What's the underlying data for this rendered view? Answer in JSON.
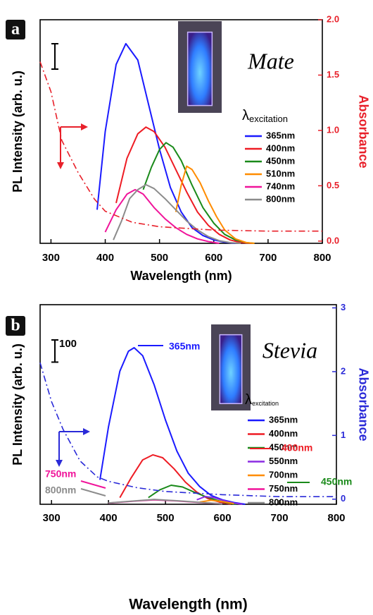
{
  "chart_data": [
    {
      "type": "line",
      "panel_label": "a",
      "annotation": "Mate",
      "xlabel": "Wavelength (nm)",
      "ylabel": "PL Intensity (arb. u.)",
      "y2label": "Absorbance",
      "y2color": "#e8202a",
      "xlim": [
        280,
        800
      ],
      "xticks": [
        300,
        400,
        500,
        600,
        700,
        800
      ],
      "ylim": [
        0,
        1000
      ],
      "y2lim": [
        -0.02,
        2.0
      ],
      "y2ticks": [
        {
          "value": 0,
          "label": "0.0"
        },
        0.5,
        {
          "value": 1,
          "label": "1.0"
        },
        1.5,
        {
          "value": 2,
          "label": "2.0"
        }
      ],
      "legend_title": {
        "symbol": "λ",
        "subscript": "excitation"
      },
      "series": [
        {
          "name": "365nm",
          "color": "#1a1aff",
          "x": [
            385,
            400,
            420,
            438,
            460,
            480,
            500,
            520,
            540,
            560,
            580,
            600,
            620,
            640
          ],
          "values": [
            150,
            500,
            800,
            893,
            820,
            620,
            420,
            250,
            140,
            70,
            35,
            15,
            5,
            0
          ]
        },
        {
          "name": "400nm",
          "color": "#ee1c24",
          "x": [
            420,
            440,
            460,
            475,
            490,
            510,
            530,
            550,
            570,
            590,
            610,
            630,
            650,
            670
          ],
          "values": [
            180,
            380,
            490,
            520,
            500,
            430,
            330,
            230,
            140,
            80,
            40,
            15,
            3,
            0
          ]
        },
        {
          "name": "450nm",
          "color": "#1a8a1a",
          "x": [
            470,
            485,
            500,
            512,
            525,
            540,
            560,
            580,
            600,
            620,
            640,
            660,
            675
          ],
          "values": [
            240,
            340,
            420,
            450,
            430,
            370,
            260,
            160,
            90,
            40,
            15,
            3,
            0
          ]
        },
        {
          "name": "510nm",
          "color": "#ff8c00",
          "x": [
            530,
            540,
            550,
            560,
            575,
            590,
            605,
            620,
            640,
            660,
            675
          ],
          "values": [
            140,
            260,
            345,
            330,
            270,
            190,
            120,
            60,
            20,
            3,
            0
          ]
        },
        {
          "name": "740nm",
          "color": "#f0149a",
          "x": [
            400,
            420,
            440,
            455,
            470,
            490,
            510,
            530,
            550,
            570,
            590,
            610
          ],
          "values": [
            50,
            150,
            220,
            240,
            220,
            160,
            110,
            70,
            40,
            20,
            8,
            0
          ]
        },
        {
          "name": "800nm",
          "color": "#8c8c8c",
          "x": [
            415,
            430,
            445,
            460,
            475,
            490,
            510,
            530,
            550,
            570,
            590,
            610,
            630,
            650
          ],
          "values": [
            15,
            100,
            200,
            240,
            262,
            245,
            200,
            150,
            100,
            60,
            30,
            12,
            3,
            0
          ]
        },
        {
          "color": "#e8202a",
          "axis": "y2",
          "style": "dash-dot",
          "x": [
            280,
            300,
            320,
            350,
            380,
            400,
            450,
            500,
            600,
            700,
            800
          ],
          "values": [
            1.62,
            1.35,
            0.91,
            0.62,
            0.38,
            0.27,
            0.17,
            0.13,
            0.1,
            0.09,
            0.09
          ]
        }
      ]
    },
    {
      "type": "line",
      "panel_label": "b",
      "annotation": "Stevia",
      "xlabel": "Wavelength (nm)",
      "ylabel": "PL Intensity (arb. u.)",
      "y2label": "Absorbance",
      "y2color": "#2a2ad8",
      "xlim": [
        280,
        800
      ],
      "xticks": [
        300,
        400,
        500,
        600,
        700,
        800
      ],
      "ylim": [
        0,
        900
      ],
      "scale_bar": 100,
      "y2lim": [
        -0.08,
        3.05
      ],
      "y2ticks": [
        0,
        1,
        2,
        3
      ],
      "legend_title": {
        "symbol": "λ",
        "subscript": "excitation"
      },
      "series": [
        {
          "name": "365nm",
          "color": "#1a1aff",
          "x": [
            385,
            400,
            420,
            435,
            445,
            460,
            480,
            500,
            520,
            540,
            560,
            580,
            600,
            620,
            640
          ],
          "values": [
            110,
            350,
            600,
            690,
            706,
            670,
            540,
            380,
            240,
            140,
            80,
            40,
            20,
            8,
            0
          ]
        },
        {
          "name": "400nm",
          "color": "#ee1c24",
          "x": [
            420,
            440,
            460,
            478,
            495,
            515,
            535,
            555,
            575,
            595,
            615
          ],
          "values": [
            30,
            120,
            200,
            223,
            210,
            160,
            100,
            55,
            25,
            10,
            0
          ]
        },
        {
          "name": "450nm",
          "color": "#1a8a1a",
          "x": [
            470,
            490,
            510,
            530,
            550,
            570,
            590,
            610,
            625
          ],
          "values": [
            30,
            65,
            86,
            78,
            55,
            35,
            18,
            5,
            0
          ]
        },
        {
          "name": "550nm",
          "color": "#8b2be2",
          "x": [
            555,
            570,
            585,
            600,
            620,
            635
          ],
          "values": [
            20,
            35,
            30,
            18,
            5,
            0
          ]
        },
        {
          "name": "700nm",
          "color": "#ff8c00",
          "x": [
            560,
            580,
            600,
            620
          ],
          "values": [
            10,
            18,
            12,
            3
          ]
        },
        {
          "name": "750nm",
          "color": "#f0149a",
          "x": [
            400,
            450,
            480,
            520,
            560,
            600
          ],
          "values": [
            5,
            15,
            20,
            15,
            8,
            2
          ]
        },
        {
          "name": "800nm",
          "color": "#8c8c8c",
          "x": [
            400,
            450,
            480,
            520,
            560,
            600
          ],
          "values": [
            6,
            16,
            22,
            16,
            9,
            2
          ]
        },
        {
          "color": "#2a2ad8",
          "axis": "y2",
          "style": "dash-dot",
          "x": [
            280,
            300,
            320,
            350,
            380,
            400,
            450,
            500,
            600,
            700,
            800
          ],
          "values": [
            2.14,
            1.53,
            1.1,
            0.6,
            0.35,
            0.28,
            0.18,
            0.12,
            0.07,
            0.04,
            0.04
          ]
        }
      ],
      "annotations": [
        {
          "text": "365nm",
          "color": "#1a1aff"
        },
        {
          "text": "400nm",
          "color": "#ee1c24"
        },
        {
          "text": "450nm",
          "color": "#1a8a1a"
        },
        {
          "text": "750nm",
          "color": "#f0149a"
        },
        {
          "text": "800nm",
          "color": "#8c8c8c"
        }
      ]
    }
  ]
}
